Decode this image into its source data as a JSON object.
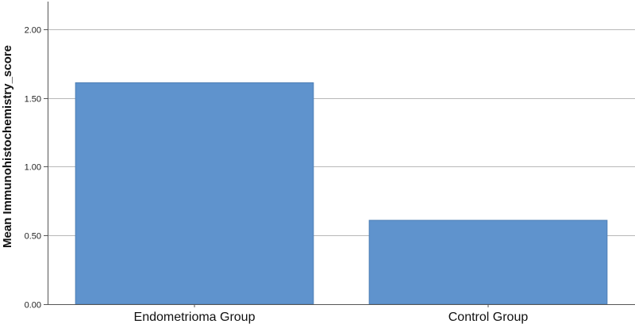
{
  "chart_data": {
    "type": "bar",
    "title": "",
    "xlabel": "",
    "ylabel": "Mean Immunohistochemistry_score",
    "categories": [
      "Endometrioma Group",
      "Control Group"
    ],
    "values": [
      1.61,
      0.61
    ],
    "ylim": [
      0,
      2.2
    ],
    "yticks": [
      "0.00",
      "0.50",
      "1.00",
      "1.50",
      "2.00"
    ],
    "grid": true,
    "colors": {
      "bar": "#5f93cd",
      "bar_stroke": "#4f7fb5",
      "grid": "#b8b8b8",
      "axis": "#555555"
    }
  }
}
